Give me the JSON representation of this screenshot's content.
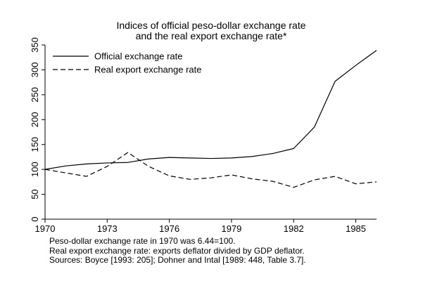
{
  "chart_data": {
    "type": "line",
    "title": "Indices of official peso-dollar exchange rate",
    "subtitle": "and the real export exchange rate*",
    "xlabel": "",
    "ylabel": "",
    "xlim": [
      1970,
      1986
    ],
    "ylim": [
      0,
      350
    ],
    "x_ticks": [
      1970,
      1973,
      1976,
      1979,
      1982,
      1985
    ],
    "y_ticks": [
      0,
      50,
      100,
      150,
      200,
      250,
      300,
      350
    ],
    "grid": false,
    "legend_position": "top-left",
    "x": [
      1970,
      1971,
      1972,
      1973,
      1974,
      1975,
      1976,
      1977,
      1978,
      1979,
      1980,
      1981,
      1982,
      1983,
      1984,
      1985,
      1986
    ],
    "series": [
      {
        "name": "Official exchange rate",
        "line_style": "solid",
        "color": "#000000",
        "values": [
          100,
          107,
          111,
          113,
          114,
          121,
          124,
          123,
          122,
          123,
          126,
          132,
          142,
          185,
          277,
          309,
          339
        ]
      },
      {
        "name": "Real export exchange rate",
        "line_style": "dashed",
        "color": "#000000",
        "values": [
          100,
          93,
          86,
          106,
          134,
          106,
          87,
          80,
          83,
          89,
          81,
          76,
          64,
          79,
          86,
          71,
          75
        ]
      }
    ]
  },
  "notes": [
    "Peso-dollar exchange rate in 1970 was 6.44=100.",
    "Real export exchange rate: exports deflator divided by GDP deflator.",
    "Sources: Boyce [1993: 205]; Dohner and Intal [1989: 448, Table 3.7]."
  ]
}
